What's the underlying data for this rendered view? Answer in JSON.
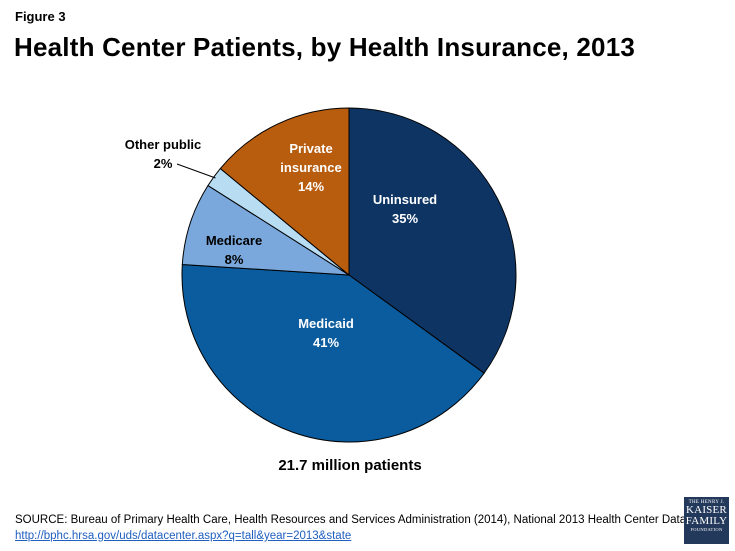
{
  "figure_label": "Figure 3",
  "title": "Health Center Patients, by Health Insurance, 2013",
  "chart_data": {
    "type": "pie",
    "title": "Health Center Patients, by Health Insurance, 2013",
    "start_angle_deg": 0,
    "direction": "clockwise",
    "slices": [
      {
        "name": "Uninsured",
        "label_lines": [
          "Uninsured"
        ],
        "value": 35,
        "value_label": "35%",
        "color": "#0e3464",
        "text_color": "#ffffff"
      },
      {
        "name": "Medicaid",
        "label_lines": [
          "Medicaid"
        ],
        "value": 41,
        "value_label": "41%",
        "color": "#0b5c9e",
        "text_color": "#ffffff"
      },
      {
        "name": "Medicare",
        "label_lines": [
          "Medicare"
        ],
        "value": 8,
        "value_label": "8%",
        "color": "#7aa8dc",
        "text_color": "#000000"
      },
      {
        "name": "Other public",
        "label_lines": [
          "Other public"
        ],
        "value": 2,
        "value_label": "2%",
        "color": "#b8ddf3",
        "text_color": "#000000"
      },
      {
        "name": "Private insurance",
        "label_lines": [
          "Private",
          "insurance"
        ],
        "value": 14,
        "value_label": "14%",
        "color": "#b85c0e",
        "text_color": "#ffffff"
      }
    ],
    "total_label": "21.7 million patients"
  },
  "source": {
    "text": "SOURCE: Bureau of Primary Health Care, Health Resources and Services Administration (2014), National 2013 Health Center Data,",
    "link": "http://bphc.hrsa.gov/uds/datacenter.aspx?q=tall&year=2013&state"
  },
  "logo": {
    "line1": "THE HENRY J.",
    "line2": "KAISER",
    "line3": "FAMILY",
    "line4": "FOUNDATION"
  }
}
